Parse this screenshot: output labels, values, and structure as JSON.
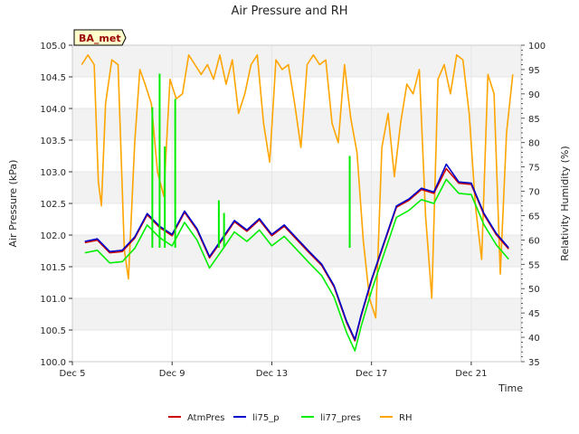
{
  "chart_data": {
    "type": "line",
    "title": "Air Pressure and RH",
    "xlabel": "Time",
    "ylabel": "Air Pressure (kPa)",
    "y2label": "Relativity Humidity (%)",
    "badge": "BA_met",
    "ylim": [
      100.0,
      105.0
    ],
    "y2lim": [
      35,
      100
    ],
    "xlim": [
      "2023-12-05",
      "2023-12-23"
    ],
    "yticks": [
      "100.0",
      "100.5",
      "101.0",
      "101.5",
      "102.0",
      "102.5",
      "103.0",
      "103.5",
      "104.0",
      "104.5",
      "105.0"
    ],
    "y2ticks": [
      "35",
      "40",
      "45",
      "50",
      "55",
      "60",
      "65",
      "70",
      "75",
      "80",
      "85",
      "90",
      "95",
      "100"
    ],
    "xticks": [
      {
        "label": "Dec 5",
        "date": "2023-12-05"
      },
      {
        "label": "Dec 9",
        "date": "2023-12-09"
      },
      {
        "label": "Dec 13",
        "date": "2023-12-13"
      },
      {
        "label": "Dec 17",
        "date": "2023-12-17"
      },
      {
        "label": "Dec 21",
        "date": "2023-12-21"
      }
    ],
    "grid": true,
    "legend_position": "bottom",
    "series": [
      {
        "name": "AtmPres",
        "axis": "left",
        "color": "#cc0000",
        "x": [
          "2023-12-05 12:00",
          "2023-12-06 00:00",
          "2023-12-06 12:00",
          "2023-12-07 00:00",
          "2023-12-07 12:00",
          "2023-12-08 00:00",
          "2023-12-08 12:00",
          "2023-12-09 00:00",
          "2023-12-09 12:00",
          "2023-12-10 00:00",
          "2023-12-10 12:00",
          "2023-12-11 00:00",
          "2023-12-11 12:00",
          "2023-12-12 00:00",
          "2023-12-12 12:00",
          "2023-12-13 00:00",
          "2023-12-13 12:00",
          "2023-12-14 00:00",
          "2023-12-14 12:00",
          "2023-12-15 00:00",
          "2023-12-15 12:00",
          "2023-12-16 00:00",
          "2023-12-16 08:00",
          "2023-12-16 14:00",
          "2023-12-17 00:00",
          "2023-12-17 12:00",
          "2023-12-18 00:00",
          "2023-12-18 12:00",
          "2023-12-19 00:00",
          "2023-12-19 12:00",
          "2023-12-20 00:00",
          "2023-12-20 12:00",
          "2023-12-21 00:00",
          "2023-12-21 12:00",
          "2023-12-22 00:00",
          "2023-12-22 12:00"
        ],
        "y": [
          101.88,
          101.92,
          101.72,
          101.74,
          101.95,
          102.32,
          102.12,
          101.99,
          102.36,
          102.08,
          101.64,
          101.92,
          102.21,
          102.06,
          102.24,
          101.99,
          102.14,
          101.93,
          101.72,
          101.52,
          101.18,
          100.62,
          100.33,
          100.72,
          101.28,
          101.86,
          102.44,
          102.55,
          102.72,
          102.66,
          103.05,
          102.82,
          102.8,
          102.33,
          102.01,
          101.78
        ]
      },
      {
        "name": "li75_p",
        "axis": "left",
        "color": "#0000cc",
        "x": [
          "2023-12-05 12:00",
          "2023-12-06 00:00",
          "2023-12-06 12:00",
          "2023-12-07 00:00",
          "2023-12-07 12:00",
          "2023-12-08 00:00",
          "2023-12-08 12:00",
          "2023-12-09 00:00",
          "2023-12-09 12:00",
          "2023-12-10 00:00",
          "2023-12-10 12:00",
          "2023-12-11 00:00",
          "2023-12-11 12:00",
          "2023-12-12 00:00",
          "2023-12-12 12:00",
          "2023-12-13 00:00",
          "2023-12-13 12:00",
          "2023-12-14 00:00",
          "2023-12-14 12:00",
          "2023-12-15 00:00",
          "2023-12-15 12:00",
          "2023-12-16 00:00",
          "2023-12-16 08:00",
          "2023-12-16 14:00",
          "2023-12-17 00:00",
          "2023-12-17 12:00",
          "2023-12-18 00:00",
          "2023-12-18 12:00",
          "2023-12-19 00:00",
          "2023-12-19 12:00",
          "2023-12-20 00:00",
          "2023-12-20 12:00",
          "2023-12-21 00:00",
          "2023-12-21 12:00",
          "2023-12-22 00:00",
          "2023-12-22 12:00"
        ],
        "y": [
          101.9,
          101.94,
          101.74,
          101.76,
          101.97,
          102.34,
          102.14,
          102.01,
          102.38,
          102.1,
          101.66,
          101.94,
          102.23,
          102.08,
          102.26,
          102.01,
          102.16,
          101.95,
          101.74,
          101.54,
          101.2,
          100.64,
          100.35,
          100.74,
          101.3,
          101.88,
          102.46,
          102.57,
          102.74,
          102.68,
          103.12,
          102.84,
          102.82,
          102.35,
          102.03,
          101.8
        ]
      },
      {
        "name": "li77_pres",
        "axis": "left",
        "color": "#00ee00",
        "x": [
          "2023-12-05 12:00",
          "2023-12-06 00:00",
          "2023-12-06 12:00",
          "2023-12-07 00:00",
          "2023-12-07 12:00",
          "2023-12-08 00:00",
          "2023-12-08 12:00",
          "2023-12-09 00:00",
          "2023-12-09 12:00",
          "2023-12-10 00:00",
          "2023-12-10 12:00",
          "2023-12-11 00:00",
          "2023-12-11 12:00",
          "2023-12-12 00:00",
          "2023-12-12 12:00",
          "2023-12-13 00:00",
          "2023-12-13 12:00",
          "2023-12-14 00:00",
          "2023-12-14 12:00",
          "2023-12-15 00:00",
          "2023-12-15 12:00",
          "2023-12-16 00:00",
          "2023-12-16 08:00",
          "2023-12-16 14:00",
          "2023-12-17 00:00",
          "2023-12-17 12:00",
          "2023-12-18 00:00",
          "2023-12-18 12:00",
          "2023-12-19 00:00",
          "2023-12-19 12:00",
          "2023-12-20 00:00",
          "2023-12-20 12:00",
          "2023-12-21 00:00",
          "2023-12-21 12:00",
          "2023-12-22 00:00",
          "2023-12-22 12:00"
        ],
        "y": [
          101.72,
          101.76,
          101.56,
          101.58,
          101.79,
          102.16,
          101.96,
          101.83,
          102.2,
          101.92,
          101.48,
          101.76,
          102.05,
          101.9,
          102.08,
          101.83,
          101.98,
          101.77,
          101.56,
          101.36,
          101.02,
          100.46,
          100.17,
          100.56,
          101.12,
          101.7,
          102.28,
          102.39,
          102.56,
          102.5,
          102.88,
          102.66,
          102.64,
          102.17,
          101.85,
          101.62
        ],
        "spikes": [
          {
            "x": "2023-12-08 05:00",
            "y": 104.02
          },
          {
            "x": "2023-12-08 12:00",
            "y": 104.55
          },
          {
            "x": "2023-12-08 17:00",
            "y": 103.4
          },
          {
            "x": "2023-12-09 03:00",
            "y": 104.15
          },
          {
            "x": "2023-12-10 21:00",
            "y": 102.55
          },
          {
            "x": "2023-12-11 02:00",
            "y": 102.35
          },
          {
            "x": "2023-12-16 03:00",
            "y": 103.25
          }
        ]
      },
      {
        "name": "RH",
        "axis": "right",
        "color": "#ffa500",
        "x": [
          "2023-12-05 09:00",
          "2023-12-05 15:00",
          "2023-12-05 21:00",
          "2023-12-06 01:00",
          "2023-12-06 04:00",
          "2023-12-06 08:00",
          "2023-12-06 14:00",
          "2023-12-06 20:00",
          "2023-12-07 02:00",
          "2023-12-07 06:00",
          "2023-12-07 12:00",
          "2023-12-07 17:00",
          "2023-12-07 22:00",
          "2023-12-08 04:00",
          "2023-12-08 10:00",
          "2023-12-08 16:00",
          "2023-12-08 22:00",
          "2023-12-09 04:00",
          "2023-12-09 10:00",
          "2023-12-09 16:00",
          "2023-12-09 22:00",
          "2023-12-10 04:00",
          "2023-12-10 10:00",
          "2023-12-10 16:00",
          "2023-12-10 22:00",
          "2023-12-11 04:00",
          "2023-12-11 10:00",
          "2023-12-11 16:00",
          "2023-12-11 22:00",
          "2023-12-12 04:00",
          "2023-12-12 10:00",
          "2023-12-12 16:00",
          "2023-12-12 22:00",
          "2023-12-13 04:00",
          "2023-12-13 10:00",
          "2023-12-13 16:00",
          "2023-12-13 22:00",
          "2023-12-14 04:00",
          "2023-12-14 10:00",
          "2023-12-14 16:00",
          "2023-12-14 22:00",
          "2023-12-15 04:00",
          "2023-12-15 10:00",
          "2023-12-15 16:00",
          "2023-12-15 22:00",
          "2023-12-16 04:00",
          "2023-12-16 10:00",
          "2023-12-16 16:00",
          "2023-12-16 22:00",
          "2023-12-17 04:00",
          "2023-12-17 10:00",
          "2023-12-17 16:00",
          "2023-12-17 22:00",
          "2023-12-18 04:00",
          "2023-12-18 10:00",
          "2023-12-18 16:00",
          "2023-12-18 22:00",
          "2023-12-19 04:00",
          "2023-12-19 10:00",
          "2023-12-19 16:00",
          "2023-12-19 22:00",
          "2023-12-20 04:00",
          "2023-12-20 10:00",
          "2023-12-20 16:00",
          "2023-12-20 22:00",
          "2023-12-21 04:00",
          "2023-12-21 10:00",
          "2023-12-21 16:00",
          "2023-12-21 22:00",
          "2023-12-22 04:00",
          "2023-12-22 10:00",
          "2023-12-22 16:00"
        ],
        "y": [
          96,
          98,
          96,
          72,
          67,
          88,
          97,
          96,
          58,
          52,
          80,
          95,
          92,
          88,
          74,
          69,
          93,
          89,
          90,
          98,
          96,
          94,
          96,
          93,
          98,
          92,
          97,
          86,
          90,
          96,
          98,
          84,
          76,
          97,
          95,
          96,
          88,
          79,
          96,
          98,
          96,
          97,
          84,
          80,
          96,
          85,
          78,
          60,
          48,
          44,
          79,
          86,
          73,
          84,
          92,
          90,
          95,
          65,
          48,
          93,
          96,
          90,
          98,
          97,
          86,
          67,
          56,
          94,
          90,
          53,
          82,
          94
        ]
      }
    ]
  }
}
